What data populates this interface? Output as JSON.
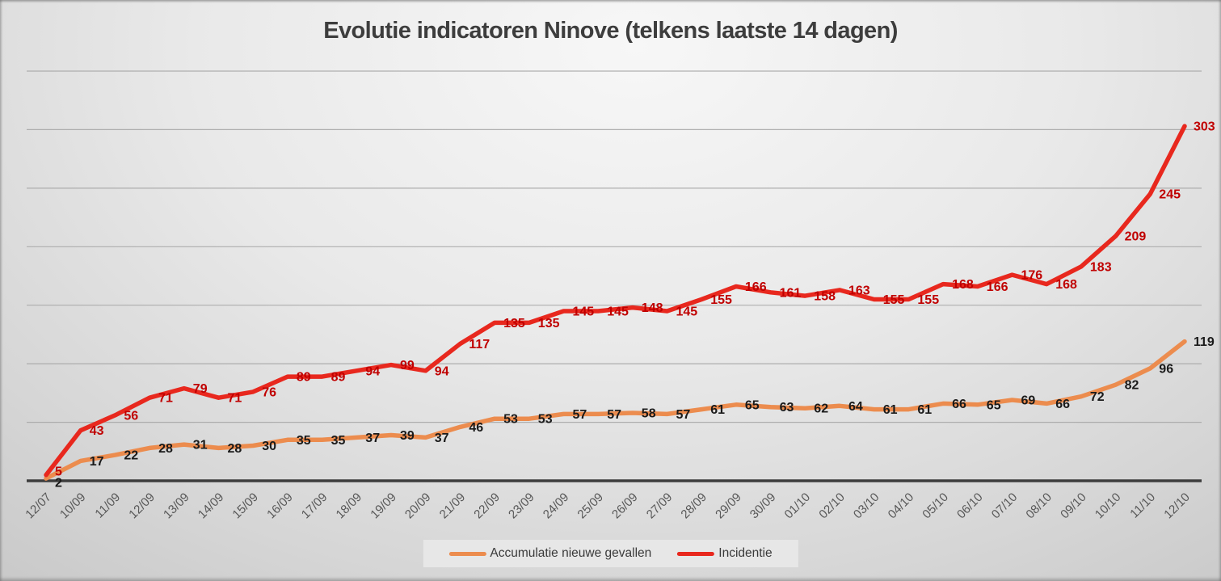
{
  "title": "Evolutie indicatoren Ninove (telkens laatste 14 dagen)",
  "colors": {
    "axis": "#3d3d3d",
    "gridline": "#a8a8a8",
    "tick_label": "#575757",
    "title": "#3d3d3d",
    "legend_bg": "#e7e7e7",
    "legend_text": "#3a3a3a"
  },
  "chart_data": {
    "type": "line",
    "title": "Evolutie indicatoren Ninove (telkens laatste 14 dagen)",
    "categories": [
      "12/07",
      "10/09",
      "11/09",
      "12/09",
      "13/09",
      "14/09",
      "15/09",
      "16/09",
      "17/09",
      "18/09",
      "19/09",
      "20/09",
      "21/09",
      "22/09",
      "23/09",
      "24/09",
      "25/09",
      "26/09",
      "27/09",
      "28/09",
      "29/09",
      "30/09",
      "01/10",
      "02/10",
      "03/10",
      "04/10",
      "05/10",
      "06/10",
      "07/10",
      "08/10",
      "09/10",
      "10/10",
      "11/10",
      "12/10"
    ],
    "series": [
      {
        "name": "Accumulatie nieuwe gevallen",
        "color": "#ec8c4e",
        "label_color": "#1a1a1a",
        "values": [
          2,
          17,
          22,
          28,
          31,
          28,
          30,
          35,
          35,
          37,
          39,
          37,
          46,
          53,
          53,
          57,
          57,
          58,
          57,
          61,
          65,
          63,
          62,
          64,
          61,
          61,
          66,
          65,
          69,
          66,
          72,
          82,
          96,
          119
        ]
      },
      {
        "name": "Incidentie",
        "color": "#e8281e",
        "label_color": "#c00000",
        "values": [
          5,
          43,
          56,
          71,
          79,
          71,
          76,
          89,
          89,
          94,
          99,
          94,
          117,
          135,
          135,
          145,
          145,
          148,
          145,
          155,
          166,
          161,
          158,
          163,
          155,
          155,
          168,
          166,
          176,
          168,
          183,
          209,
          245,
          303
        ]
      }
    ],
    "ylim": [
      0,
      350
    ],
    "gridline_step": 50,
    "grid": "horizontal-only",
    "y_axis_labels_visible": false,
    "x_label_rotation": -45,
    "data_label_position": "right",
    "legend_position": "bottom-center"
  }
}
